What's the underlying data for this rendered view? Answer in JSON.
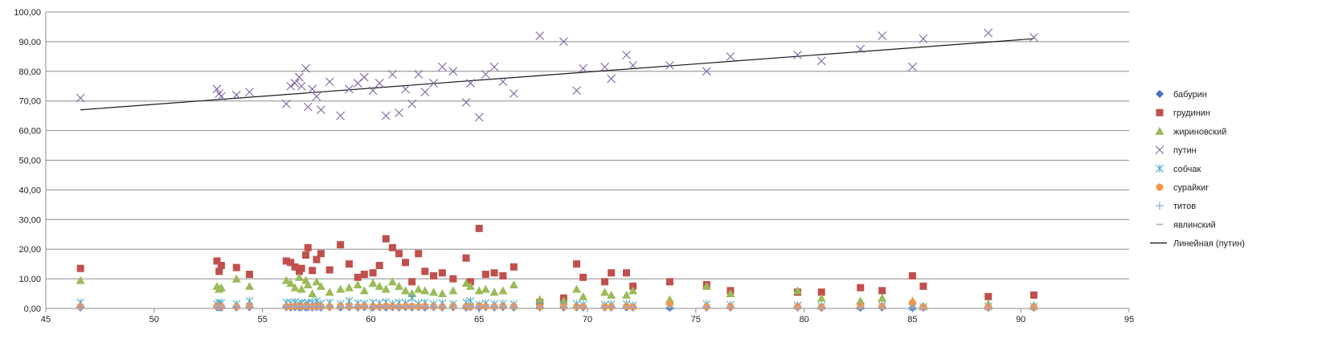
{
  "chart_data": {
    "type": "scatter",
    "title": "",
    "xlabel": "",
    "ylabel": "",
    "xlim": [
      45,
      95
    ],
    "ylim": [
      0,
      100
    ],
    "x_ticks": [
      "45",
      "50",
      "55",
      "60",
      "65",
      "70",
      "75",
      "80",
      "85",
      "90",
      "95"
    ],
    "y_ticks": [
      "0,00",
      "10,00",
      "20,00",
      "30,00",
      "40,00",
      "50,00",
      "60,00",
      "70,00",
      "80,00",
      "90,00",
      "100,00"
    ],
    "grid": "horizontal",
    "legend_position": "right",
    "x": [
      46.6,
      52.9,
      53.0,
      53.1,
      53.8,
      54.4,
      56.1,
      56.3,
      56.5,
      56.7,
      56.8,
      57.0,
      57.1,
      57.3,
      57.5,
      57.7,
      58.1,
      58.6,
      59.0,
      59.4,
      59.7,
      60.1,
      60.4,
      60.7,
      61.0,
      61.3,
      61.6,
      61.9,
      62.2,
      62.5,
      62.9,
      63.3,
      63.8,
      64.4,
      64.6,
      65.0,
      65.3,
      65.7,
      66.1,
      66.6,
      67.8,
      68.9,
      69.5,
      69.8,
      70.8,
      71.1,
      71.8,
      72.1,
      73.8,
      75.5,
      76.6,
      79.7,
      80.8,
      82.6,
      83.6,
      85.0,
      85.5,
      88.5,
      90.6
    ],
    "series": [
      {
        "name": "бабурин",
        "color": "#4472c4",
        "marker": "diamond",
        "values": [
          0.3,
          0.4,
          0.3,
          0.3,
          0.3,
          0.4,
          0.4,
          0.3,
          0.4,
          0.3,
          0.4,
          0.3,
          0.4,
          0.3,
          0.4,
          0.3,
          0.4,
          0.3,
          0.4,
          0.3,
          0.4,
          0.3,
          0.4,
          0.3,
          0.4,
          0.3,
          0.4,
          0.3,
          0.4,
          0.3,
          0.4,
          0.3,
          0.4,
          0.3,
          0.4,
          0.3,
          0.4,
          0.3,
          0.4,
          0.3,
          0.3,
          0.3,
          0.3,
          0.3,
          0.3,
          0.3,
          0.3,
          0.3,
          0.2,
          0.3,
          0.3,
          0.3,
          0.2,
          0.2,
          0.3,
          0.2,
          0.2,
          0.2,
          0.2
        ]
      },
      {
        "name": "грудинин",
        "color": "#c0504d",
        "marker": "square",
        "values": [
          13.5,
          16.0,
          12.5,
          14.5,
          13.8,
          11.5,
          16.0,
          15.5,
          14.0,
          12.5,
          13.5,
          18.0,
          20.5,
          12.8,
          16.5,
          18.5,
          13.0,
          21.5,
          15.0,
          10.5,
          11.5,
          12.0,
          14.5,
          23.5,
          20.5,
          18.5,
          15.5,
          9.0,
          18.5,
          12.5,
          11.0,
          12.0,
          10.0,
          17.0,
          9.0,
          27.0,
          11.5,
          12.0,
          11.0,
          14.0,
          2.0,
          3.5,
          15.0,
          10.5,
          9.0,
          12.0,
          12.0,
          7.5,
          9.0,
          8.0,
          6.0,
          5.5,
          5.5,
          7.0,
          6.0,
          11.0,
          7.5,
          4.0,
          4.5
        ]
      },
      {
        "name": "жириновский",
        "color": "#9bbb59",
        "marker": "triangle",
        "values": [
          9.5,
          7.5,
          6.5,
          7.0,
          10.0,
          7.5,
          9.5,
          8.5,
          7.0,
          10.5,
          6.5,
          9.5,
          8.0,
          5.0,
          9.0,
          7.5,
          5.5,
          6.5,
          7.0,
          8.0,
          6.0,
          8.5,
          7.5,
          6.5,
          9.0,
          7.5,
          6.0,
          5.0,
          6.5,
          6.0,
          5.5,
          5.0,
          6.0,
          8.5,
          7.5,
          6.0,
          6.5,
          5.5,
          6.0,
          8.0,
          3.0,
          2.5,
          6.5,
          4.0,
          5.5,
          4.5,
          4.5,
          6.0,
          3.0,
          7.5,
          5.0,
          6.0,
          3.5,
          2.5,
          3.5,
          2.5,
          0.8,
          1.5,
          1.0
        ]
      },
      {
        "name": "путин",
        "color": "#8064a2",
        "marker": "x",
        "values": [
          71.0,
          74.0,
          72.5,
          71.5,
          72.0,
          73.0,
          69.0,
          75.0,
          76.0,
          78.0,
          75.0,
          81.0,
          68.0,
          74.0,
          71.5,
          67.0,
          76.5,
          65.0,
          74.0,
          76.0,
          78.0,
          73.5,
          76.0,
          65.0,
          79.0,
          66.0,
          74.0,
          69.0,
          79.0,
          73.0,
          76.0,
          81.5,
          80.0,
          69.5,
          76.0,
          64.5,
          79.0,
          81.5,
          76.5,
          72.5,
          92.0,
          90.0,
          73.5,
          81.0,
          81.5,
          77.5,
          85.5,
          82.0,
          82.0,
          80.0,
          85.0,
          85.5,
          83.5,
          87.5,
          92.0,
          81.5,
          91.0,
          93.0,
          91.5
        ]
      },
      {
        "name": "собчак",
        "color": "#4bacc6",
        "marker": "asterisk",
        "values": [
          2.0,
          1.5,
          2.0,
          1.8,
          1.5,
          2.5,
          2.0,
          1.8,
          2.2,
          1.5,
          2.0,
          1.6,
          1.8,
          2.0,
          2.5,
          1.7,
          2.0,
          1.5,
          2.5,
          1.8,
          1.6,
          2.0,
          1.8,
          2.2,
          1.5,
          2.0,
          1.8,
          3.5,
          1.6,
          2.0,
          1.5,
          1.8,
          1.5,
          2.0,
          2.5,
          1.2,
          1.8,
          1.5,
          1.6,
          1.4,
          1.0,
          1.2,
          1.5,
          1.3,
          1.2,
          1.4,
          1.5,
          1.0,
          0.8,
          1.5,
          1.2,
          1.0,
          0.8,
          0.8,
          1.0,
          0.4,
          0.5,
          0.6,
          0.6
        ]
      },
      {
        "name": "сурайкиг",
        "color": "#f79646",
        "marker": "circle",
        "values": [
          0.7,
          0.8,
          0.6,
          0.7,
          0.6,
          0.8,
          0.7,
          0.6,
          0.8,
          0.7,
          0.6,
          0.8,
          0.7,
          0.6,
          0.8,
          0.7,
          0.6,
          0.8,
          0.7,
          0.6,
          0.8,
          0.7,
          0.6,
          0.8,
          0.7,
          0.6,
          0.8,
          0.7,
          0.6,
          0.8,
          0.7,
          0.6,
          0.8,
          0.7,
          0.6,
          0.8,
          0.7,
          0.6,
          0.8,
          0.7,
          0.5,
          0.7,
          0.6,
          0.6,
          0.6,
          0.6,
          0.7,
          0.5,
          1.5,
          0.6,
          0.6,
          0.6,
          0.5,
          0.8,
          0.7,
          2.0,
          0.5,
          0.5,
          0.4
        ]
      },
      {
        "name": "титов",
        "color": "#7f9fd6",
        "marker": "plus",
        "values": [
          0.5,
          0.7,
          0.5,
          0.6,
          0.5,
          0.6,
          0.5,
          0.6,
          0.7,
          0.5,
          0.6,
          0.5,
          0.7,
          0.5,
          0.6,
          0.5,
          0.7,
          0.5,
          0.6,
          0.5,
          0.7,
          0.5,
          0.6,
          0.5,
          0.7,
          0.5,
          0.6,
          0.5,
          0.7,
          0.5,
          0.6,
          0.5,
          0.7,
          0.5,
          0.6,
          0.5,
          0.7,
          0.5,
          0.6,
          0.5,
          0.4,
          0.5,
          0.4,
          0.5,
          0.4,
          0.5,
          0.4,
          0.5,
          0.3,
          0.4,
          0.4,
          0.4,
          0.3,
          0.3,
          0.4,
          0.3,
          0.3,
          0.3,
          0.3
        ]
      },
      {
        "name": "явлинский",
        "color": "#c4a5a2",
        "marker": "dash",
        "values": [
          0.9,
          0.8,
          0.9,
          0.8,
          0.9,
          0.8,
          0.9,
          0.8,
          0.9,
          0.8,
          0.9,
          0.8,
          0.9,
          0.8,
          0.9,
          0.8,
          0.9,
          0.8,
          0.9,
          0.8,
          0.9,
          0.8,
          0.9,
          0.8,
          0.9,
          0.8,
          0.9,
          0.8,
          0.9,
          0.8,
          0.9,
          0.8,
          0.9,
          0.8,
          0.9,
          0.8,
          0.9,
          0.8,
          0.9,
          0.8,
          0.6,
          0.7,
          0.6,
          0.7,
          0.6,
          0.7,
          0.6,
          0.7,
          0.5,
          0.6,
          0.6,
          0.5,
          0.5,
          0.5,
          0.6,
          0.4,
          0.4,
          0.4,
          0.4
        ]
      }
    ],
    "trendline": {
      "name": "Линейная (путин)",
      "color": "#1a1a1a",
      "of_series": "путин",
      "x": [
        46.6,
        90.6
      ],
      "y": [
        67.0,
        91.0
      ]
    }
  }
}
